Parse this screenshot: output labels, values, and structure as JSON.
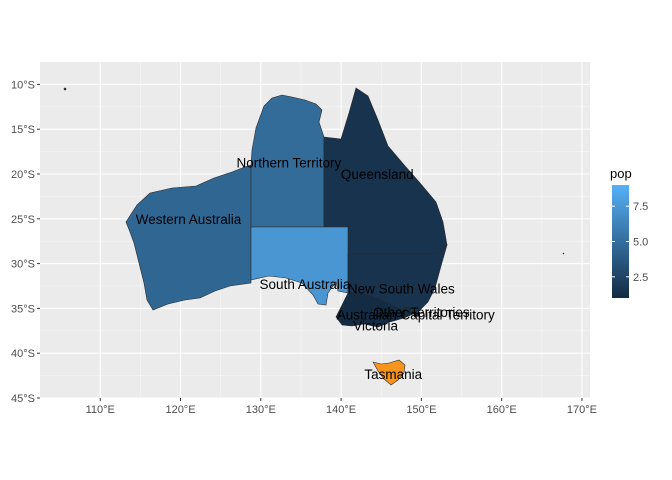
{
  "chart_data": {
    "type": "choropleth-map",
    "title": "",
    "xlabel": "",
    "ylabel": "",
    "xlim": [
      102.5,
      171
    ],
    "ylim": [
      -45,
      -7.5
    ],
    "grid": true,
    "x_ticks": [
      {
        "value": 110,
        "label": "110°E"
      },
      {
        "value": 120,
        "label": "120°E"
      },
      {
        "value": 130,
        "label": "130°E"
      },
      {
        "value": 140,
        "label": "140°E"
      },
      {
        "value": 150,
        "label": "150°E"
      },
      {
        "value": 160,
        "label": "160°E"
      },
      {
        "value": 170,
        "label": "170°E"
      }
    ],
    "y_ticks": [
      {
        "value": -10,
        "label": "10°S"
      },
      {
        "value": -15,
        "label": "15°S"
      },
      {
        "value": -20,
        "label": "20°S"
      },
      {
        "value": -25,
        "label": "25°S"
      },
      {
        "value": -30,
        "label": "30°S"
      },
      {
        "value": -35,
        "label": "35°S"
      },
      {
        "value": -40,
        "label": "40°S"
      },
      {
        "value": -45,
        "label": "45°S"
      }
    ],
    "regions": [
      {
        "name": "Western Australia",
        "pop": 4.5,
        "label_pos": [
          121,
          -25
        ]
      },
      {
        "name": "Northern Territory",
        "pop": 4.8,
        "label_pos": [
          133.5,
          -18.7
        ]
      },
      {
        "name": "Queensland",
        "pop": 1.5,
        "label_pos": [
          144.5,
          -20
        ]
      },
      {
        "name": "South Australia",
        "pop": 7.4,
        "label_pos": [
          135.5,
          -32.3
        ]
      },
      {
        "name": "New South Wales",
        "pop": 1.5,
        "label_pos": [
          147.5,
          -32.8
        ]
      },
      {
        "name": "Victoria",
        "pop": 1.0,
        "label_pos": [
          144.3,
          -36.9
        ]
      },
      {
        "name": "Australian Capital Territory",
        "pop": 1.2,
        "label_pos": [
          149.3,
          -35.7
        ]
      },
      {
        "name": "Other Territories",
        "pop": 1.0,
        "label_pos": [
          150,
          -35.4
        ]
      },
      {
        "name": "Tasmania",
        "pop": null,
        "fill": "#f7941d",
        "label_pos": [
          146.5,
          -42.3
        ]
      }
    ],
    "legend": {
      "title": "pop",
      "position": "right",
      "range": [
        1,
        9
      ],
      "low_color": "#132b43",
      "high_color": "#56b1f7",
      "ticks": [
        {
          "value": 2.5,
          "label": "2.5"
        },
        {
          "value": 5.0,
          "label": "5.0"
        },
        {
          "value": 7.5,
          "label": "7.5"
        }
      ]
    }
  }
}
